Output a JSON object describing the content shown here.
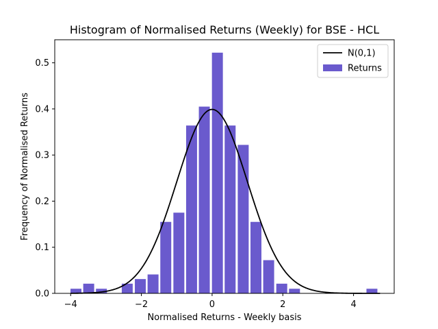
{
  "chart_data": {
    "type": "bar",
    "title": "Histogram of Normalised Returns (Weekly) for BSE - HCL",
    "xlabel": "Normalised Returns - Weekly basis",
    "ylabel": "Frequency of Normalised Returns",
    "xlim": [
      -4.45,
      5.15
    ],
    "ylim": [
      0,
      0.55
    ],
    "xticks": [
      -4,
      -2,
      0,
      2,
      4
    ],
    "yticks": [
      0.0,
      0.1,
      0.2,
      0.3,
      0.4,
      0.5
    ],
    "xtick_labels": [
      "−4",
      "−2",
      "0",
      "2",
      "4"
    ],
    "ytick_labels": [
      "0.0",
      "0.1",
      "0.2",
      "0.3",
      "0.4",
      "0.5"
    ],
    "bin_width": 0.364,
    "bar_width_fraction": 0.85,
    "bins": [
      {
        "x": -3.85,
        "value": 0.01
      },
      {
        "x": -3.49,
        "value": 0.021
      },
      {
        "x": -3.13,
        "value": 0.01
      },
      {
        "x": -2.76,
        "value": 0.0
      },
      {
        "x": -2.4,
        "value": 0.021
      },
      {
        "x": -2.03,
        "value": 0.031
      },
      {
        "x": -1.67,
        "value": 0.041
      },
      {
        "x": -1.31,
        "value": 0.155
      },
      {
        "x": -0.94,
        "value": 0.175
      },
      {
        "x": -0.58,
        "value": 0.364
      },
      {
        "x": -0.22,
        "value": 0.405
      },
      {
        "x": 0.15,
        "value": 0.522
      },
      {
        "x": 0.51,
        "value": 0.364
      },
      {
        "x": 0.88,
        "value": 0.322
      },
      {
        "x": 1.24,
        "value": 0.155
      },
      {
        "x": 1.6,
        "value": 0.072
      },
      {
        "x": 1.97,
        "value": 0.021
      },
      {
        "x": 2.33,
        "value": 0.01
      },
      {
        "x": 4.52,
        "value": 0.01
      }
    ],
    "curve": {
      "type": "normal_pdf",
      "mean": 0,
      "std": 1,
      "xrange": [
        -4.0,
        4.75
      ]
    },
    "bar_color": "#6a5acd",
    "line_color": "#000000",
    "legend": {
      "position": "top-right",
      "entries": [
        {
          "label": "N(0,1)",
          "kind": "line",
          "color": "#000000"
        },
        {
          "label": "Returns",
          "kind": "patch",
          "color": "#6a5acd"
        }
      ]
    },
    "grid": false
  }
}
